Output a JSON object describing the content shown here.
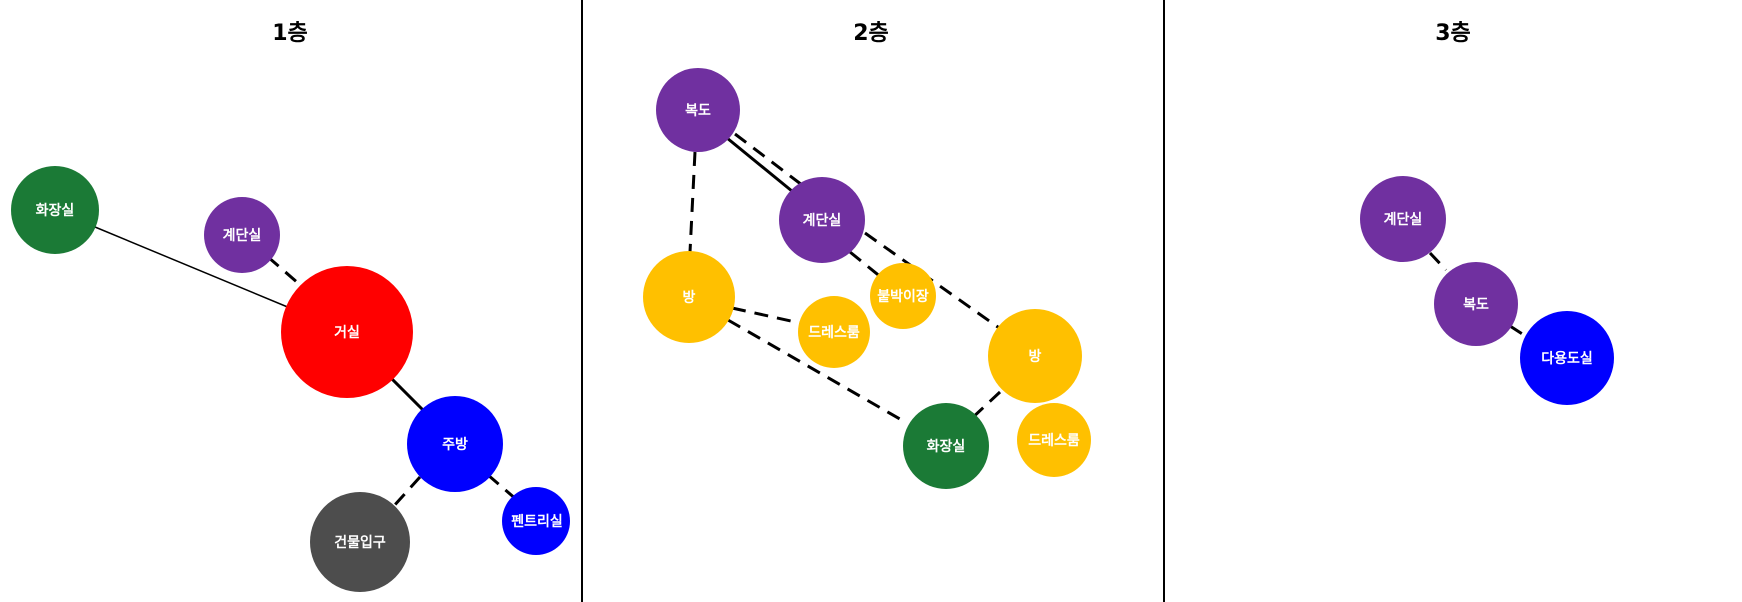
{
  "colors": {
    "living": "#ff0000",
    "circulation": "#7030a0",
    "bathroom": "#1b7a36",
    "kitchen": "#0000ff",
    "room": "#ffc000",
    "entrance": "#4d4d4d"
  },
  "floors": [
    {
      "title": "1층",
      "nodes": [
        {
          "id": "f1-bathroom",
          "label": "화장실",
          "color": "#1b7a36"
        },
        {
          "id": "f1-stair",
          "label": "계단실",
          "color": "#7030a0"
        },
        {
          "id": "f1-living",
          "label": "거실",
          "color": "#ff0000"
        },
        {
          "id": "f1-kitchen",
          "label": "주방",
          "color": "#0000ff"
        },
        {
          "id": "f1-entrance",
          "label": "건물입구",
          "color": "#4d4d4d"
        },
        {
          "id": "f1-pantry",
          "label": "펜트리실",
          "color": "#0000ff"
        }
      ]
    },
    {
      "title": "2층",
      "nodes": [
        {
          "id": "f2-corridor",
          "label": "복도",
          "color": "#7030a0"
        },
        {
          "id": "f2-stair",
          "label": "계단실",
          "color": "#7030a0"
        },
        {
          "id": "f2-room-a",
          "label": "방",
          "color": "#ffc000"
        },
        {
          "id": "f2-closet",
          "label": "붙박이장",
          "color": "#ffc000"
        },
        {
          "id": "f2-dress-a",
          "label": "드레스룸",
          "color": "#ffc000"
        },
        {
          "id": "f2-room-b",
          "label": "방",
          "color": "#ffc000"
        },
        {
          "id": "f2-bathroom",
          "label": "화장실",
          "color": "#1b7a36"
        },
        {
          "id": "f2-dress-b",
          "label": "드레스룸",
          "color": "#ffc000"
        }
      ]
    },
    {
      "title": "3층",
      "nodes": [
        {
          "id": "f3-stair",
          "label": "계단실",
          "color": "#7030a0"
        },
        {
          "id": "f3-corridor",
          "label": "복도",
          "color": "#7030a0"
        },
        {
          "id": "f3-multipurpose",
          "label": "다용도실",
          "color": "#0000ff"
        }
      ]
    }
  ]
}
